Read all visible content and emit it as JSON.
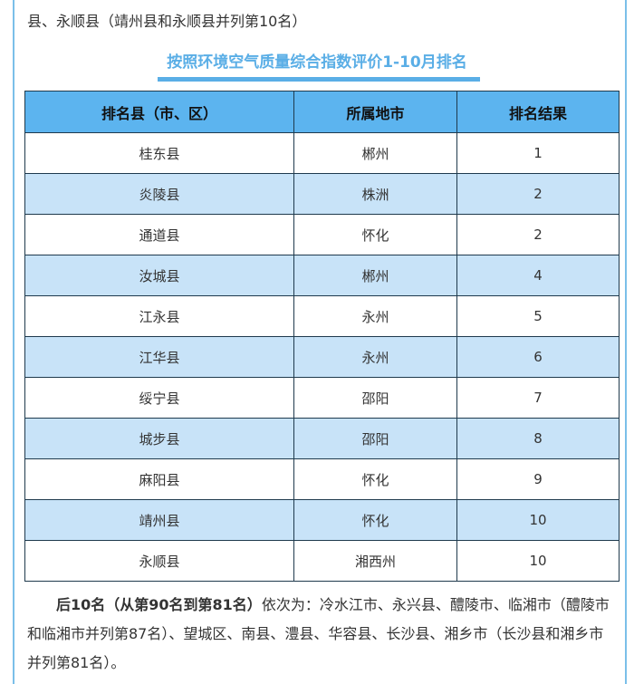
{
  "intro_tail": "县、永顺县（靖州县和永顺县并列第10名）",
  "table_title": "按照环境空气质量综合指数评价1-10月排名",
  "headers": [
    "排名县（市、区）",
    "所属地市",
    "排名结果"
  ],
  "rows": [
    [
      "桂东县",
      "郴州",
      "1"
    ],
    [
      "炎陵县",
      "株洲",
      "2"
    ],
    [
      "通道县",
      "怀化",
      "2"
    ],
    [
      "汝城县",
      "郴州",
      "4"
    ],
    [
      "江永县",
      "永州",
      "5"
    ],
    [
      "江华县",
      "永州",
      "6"
    ],
    [
      "绥宁县",
      "邵阳",
      "7"
    ],
    [
      "城步县",
      "邵阳",
      "8"
    ],
    [
      "麻阳县",
      "怀化",
      "9"
    ],
    [
      "靖州县",
      "怀化",
      "10"
    ],
    [
      "永顺县",
      "湘西州",
      "10"
    ]
  ],
  "bottom_bold": "后10名（从第90名到第81名）",
  "bottom_text": "依次为：冷水江市、永兴县、醴陵市、临湘市（醴陵市和临湘市并列第87名）、望城区、南县、澧县、华容县、长沙县、湘乡市（长沙县和湘乡市并列第81名）。",
  "colors": {
    "header_bg": "#5cb4ef",
    "alt_row": "#c8e3f8",
    "title": "#5aaee6",
    "frame": "#7bbfe9"
  }
}
